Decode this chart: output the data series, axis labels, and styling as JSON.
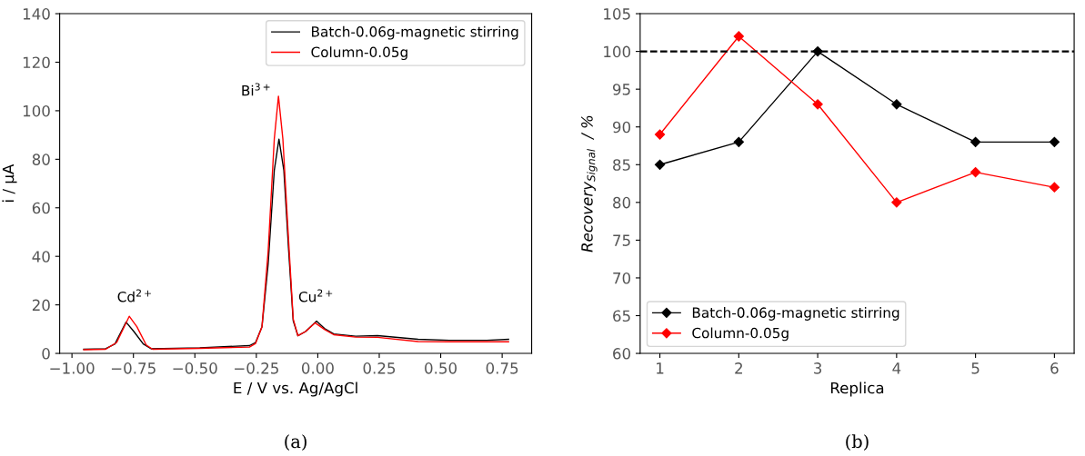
{
  "chart_data": [
    {
      "type": "line",
      "xlabel": "E / V vs. Ag/AgCl",
      "ylabel": "i / μA",
      "xlim": [
        -1.05,
        0.87
      ],
      "ylim": [
        0,
        140
      ],
      "xticks": [
        {
          "value": -1.0,
          "label": "−1.00"
        },
        {
          "value": -0.75,
          "label": "−0.75"
        },
        {
          "value": -0.5,
          "label": "−0.50"
        },
        {
          "value": -0.25,
          "label": "−0.25"
        },
        {
          "value": 0.0,
          "label": "0.00"
        },
        {
          "value": 0.25,
          "label": "0.25"
        },
        {
          "value": 0.5,
          "label": "0.50"
        },
        {
          "value": 0.75,
          "label": "0.75"
        }
      ],
      "yticks": [
        0,
        20,
        40,
        60,
        80,
        100,
        120,
        140
      ],
      "legend": "top right",
      "grid": false,
      "marker": "none",
      "series": [
        {
          "name": "Batch-0.06g-magnetic stirring",
          "color": "#000000",
          "x": [
            -0.952,
            -0.863,
            -0.825,
            -0.78,
            -0.748,
            -0.71,
            -0.678,
            -0.48,
            -0.278,
            -0.253,
            -0.227,
            -0.202,
            -0.177,
            -0.158,
            -0.138,
            -0.119,
            -0.1,
            -0.081,
            -0.05,
            -0.005,
            0.027,
            0.065,
            0.154,
            0.243,
            0.408,
            0.535,
            0.687,
            0.776
          ],
          "values": [
            1.7,
            1.9,
            3.9,
            12.9,
            9.0,
            3.9,
            1.9,
            2.3,
            3.2,
            4.5,
            11,
            36.7,
            75.4,
            88.3,
            75.4,
            43.2,
            13.5,
            7.3,
            9.0,
            13.3,
            10.3,
            8.0,
            7.1,
            7.3,
            5.8,
            5.4,
            5.4,
            5.8
          ]
        },
        {
          "name": "Column-0.05g",
          "color": "#ff0000",
          "x": [
            -0.952,
            -0.863,
            -0.818,
            -0.767,
            -0.736,
            -0.698,
            -0.672,
            -0.48,
            -0.278,
            -0.253,
            -0.227,
            -0.202,
            -0.177,
            -0.16,
            -0.142,
            -0.119,
            -0.1,
            -0.081,
            -0.05,
            -0.011,
            0.027,
            0.065,
            0.154,
            0.243,
            0.408,
            0.535,
            0.776
          ],
          "values": [
            1.5,
            1.7,
            4.5,
            15.3,
            11,
            3.5,
            1.7,
            2.1,
            2.6,
            4.1,
            11,
            41.9,
            88.3,
            106,
            88.3,
            47,
            14.2,
            7.3,
            9,
            12.6,
            9.9,
            7.7,
            6.7,
            6.6,
            4.9,
            4.8,
            4.8
          ]
        }
      ],
      "annotations": [
        "Cd$^{2+}$",
        "Bi$^{3+}$",
        "Cu$^{2+}$",
        "(a)"
      ]
    },
    {
      "type": "line",
      "xlabel": "Replica",
      "ylabel": "Recovery$_{Signal}$  / %",
      "xlim": [
        0.75,
        6.25
      ],
      "ylim": [
        60,
        105
      ],
      "xticks": [
        1,
        2,
        3,
        4,
        5,
        6
      ],
      "yticks": [
        60,
        65,
        70,
        75,
        80,
        85,
        90,
        95,
        100,
        105
      ],
      "legend": "bottom left",
      "grid": false,
      "marker": "diamond",
      "x": [
        1,
        2,
        3,
        4,
        5,
        6
      ],
      "series": [
        {
          "name": "Batch-0.06g-magnetic stirring",
          "color": "#000000",
          "values": [
            85,
            88,
            100,
            93,
            88,
            88
          ]
        },
        {
          "name": "Column-0.05g",
          "color": "#ff0000",
          "values": [
            89,
            102,
            93,
            80,
            84,
            82
          ]
        }
      ],
      "ref_lines": [
        {
          "axis": "y",
          "value": 100,
          "color": "#000000",
          "line_style": "dashed"
        }
      ],
      "annotations": [
        "(b)"
      ]
    }
  ]
}
